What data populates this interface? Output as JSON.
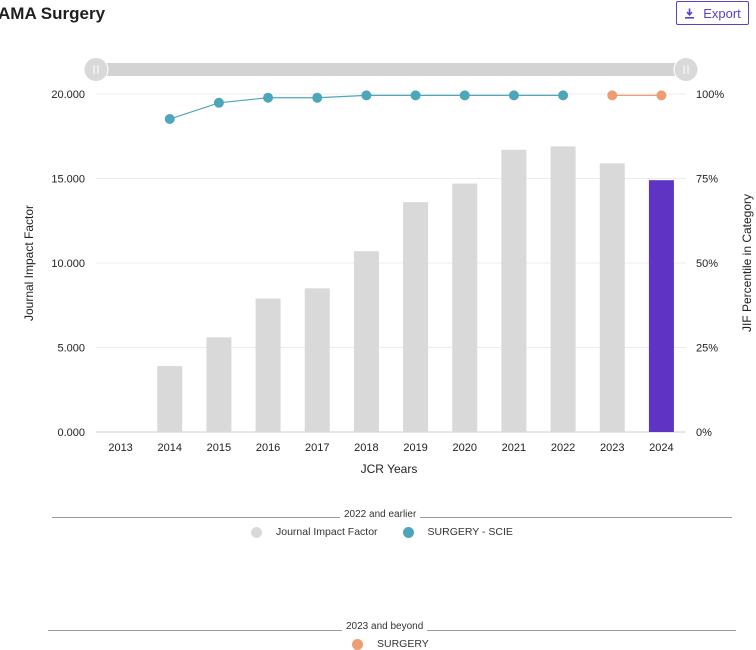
{
  "header": {
    "title": "AMA Surgery",
    "export_label": "Export",
    "export_icon": "download-icon"
  },
  "colors": {
    "bar": "#d9d9d9",
    "bar_highlight": "#5f33c3",
    "line_scie": "#4ea6bb",
    "line_surgery": "#ee9c72",
    "accent": "#5e3ec4"
  },
  "chart_data": {
    "type": "bar",
    "categories": [
      "2013",
      "2014",
      "2015",
      "2016",
      "2017",
      "2018",
      "2019",
      "2020",
      "2021",
      "2022",
      "2023",
      "2024"
    ],
    "series": [
      {
        "name": "Journal Impact Factor",
        "axis": "left",
        "values": [
          null,
          3.9,
          5.6,
          7.9,
          8.5,
          10.7,
          13.6,
          14.7,
          16.7,
          16.9,
          15.9,
          14.9
        ]
      },
      {
        "name": "SURGERY - SCIE",
        "type": "line",
        "axis": "right",
        "values": [
          null,
          92.6,
          97.4,
          98.9,
          98.9,
          99.6,
          99.6,
          99.6,
          99.6,
          99.6,
          null,
          null
        ]
      },
      {
        "name": "SURGERY",
        "type": "line",
        "axis": "right",
        "values": [
          null,
          null,
          null,
          null,
          null,
          null,
          null,
          null,
          null,
          null,
          99.6,
          99.6
        ]
      }
    ],
    "xlabel": "JCR Years",
    "ylabel": "Journal Impact Factor",
    "ylabel_right": "JIF Percentile in Category",
    "ylim": [
      0,
      20
    ],
    "ylim_right": [
      0,
      100
    ],
    "yticks": [
      "0.000",
      "5.000",
      "10.000",
      "15.000",
      "20.000"
    ],
    "yticks_right": [
      "0%",
      "25%",
      "50%",
      "75%",
      "100%"
    ],
    "highlight_category": "2024",
    "grid": true
  },
  "legend": {
    "group1_title": "2022 and earlier",
    "group1_items": [
      "Journal Impact Factor",
      "SURGERY - SCIE"
    ],
    "group2_title": "2023 and beyond",
    "group2_items": [
      "SURGERY"
    ]
  }
}
